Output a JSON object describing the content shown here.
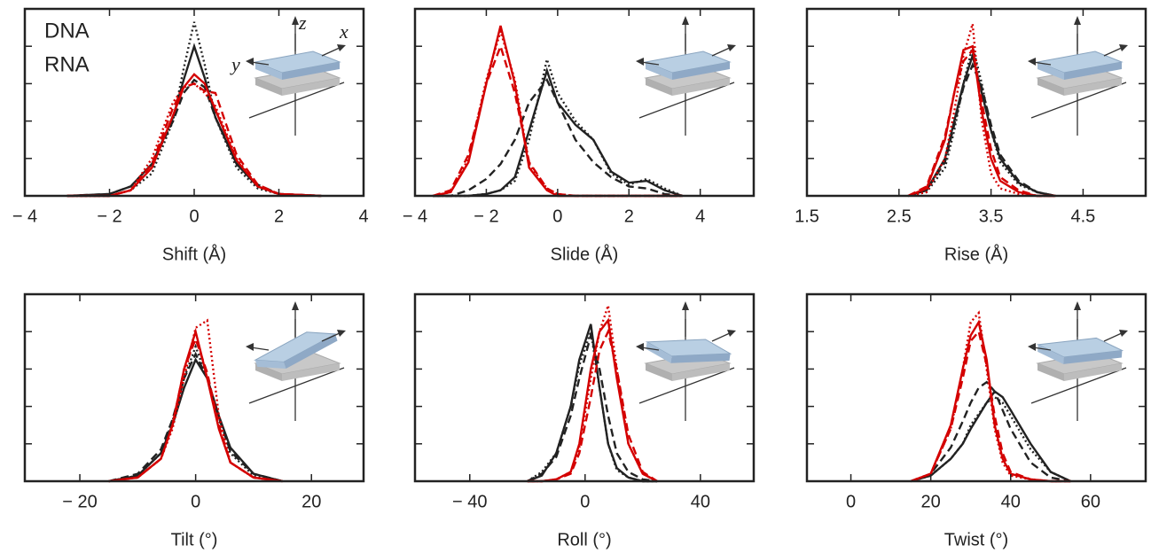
{
  "chart_data": [
    {
      "type": "line",
      "xlabel": "Shift (Å)",
      "xlim": [
        -4,
        4
      ],
      "xticks": [
        {
          "value": -4,
          "label": "− 4"
        },
        {
          "value": -2,
          "label": "− 2"
        },
        0,
        2,
        4
      ],
      "ylim": [
        0,
        1
      ],
      "yticks": [
        0.2,
        0.4,
        0.6,
        0.8
      ],
      "legend": [
        {
          "name": "DNA",
          "color": "#222222"
        },
        {
          "name": "RNA",
          "color": "#d40000"
        }
      ],
      "inset_labels": {
        "z": "z",
        "x": "x",
        "y": "y"
      },
      "x": [
        -3,
        -2,
        -1.5,
        -1,
        -0.5,
        -0.25,
        0,
        0.25,
        0.5,
        1,
        1.5,
        2,
        3
      ],
      "series": [
        {
          "color": "#222222",
          "dash": "solid",
          "values": [
            0,
            0.01,
            0.05,
            0.17,
            0.42,
            0.62,
            0.8,
            0.63,
            0.42,
            0.17,
            0.05,
            0.01,
            0
          ]
        },
        {
          "color": "#222222",
          "dash": "dashed",
          "values": [
            0,
            0.01,
            0.05,
            0.17,
            0.4,
            0.55,
            0.62,
            0.58,
            0.42,
            0.18,
            0.06,
            0.01,
            0
          ]
        },
        {
          "color": "#222222",
          "dash": "dotted",
          "values": [
            0,
            0,
            0.03,
            0.12,
            0.4,
            0.68,
            0.93,
            0.7,
            0.42,
            0.15,
            0.04,
            0.01,
            0
          ]
        },
        {
          "color": "#d40000",
          "dash": "solid",
          "values": [
            0,
            0,
            0.03,
            0.15,
            0.43,
            0.58,
            0.65,
            0.6,
            0.46,
            0.19,
            0.05,
            0.01,
            0
          ]
        },
        {
          "color": "#d40000",
          "dash": "dashed",
          "values": [
            0,
            0,
            0.03,
            0.17,
            0.47,
            0.58,
            0.6,
            0.56,
            0.55,
            0.22,
            0.06,
            0.01,
            0
          ]
        },
        {
          "color": "#d40000",
          "dash": "dotted",
          "values": [
            0,
            0,
            0.03,
            0.2,
            0.5,
            0.58,
            0.6,
            0.55,
            0.48,
            0.2,
            0.05,
            0.01,
            0
          ]
        }
      ]
    },
    {
      "type": "line",
      "xlabel": "Slide (Å)",
      "xlim": [
        -4,
        5.5
      ],
      "xticks": [
        {
          "value": -4,
          "label": "− 4"
        },
        {
          "value": -2,
          "label": "− 2"
        },
        0,
        2,
        4
      ],
      "ylim": [
        0,
        1
      ],
      "yticks": [
        0.2,
        0.4,
        0.6,
        0.8
      ],
      "x": [
        -3.5,
        -3,
        -2.5,
        -2,
        -1.6,
        -1.2,
        -0.8,
        -0.3,
        0,
        0.5,
        1,
        1.5,
        2,
        2.5,
        3,
        3.5
      ],
      "series": [
        {
          "color": "#222222",
          "dash": "solid",
          "values": [
            0,
            0,
            0,
            0.01,
            0.03,
            0.1,
            0.35,
            0.67,
            0.5,
            0.38,
            0.3,
            0.13,
            0.07,
            0.08,
            0.03,
            0
          ]
        },
        {
          "color": "#222222",
          "dash": "dashed",
          "values": [
            0,
            0,
            0.03,
            0.09,
            0.17,
            0.3,
            0.5,
            0.62,
            0.5,
            0.3,
            0.18,
            0.1,
            0.05,
            0.04,
            0.01,
            0
          ]
        },
        {
          "color": "#222222",
          "dash": "dotted",
          "values": [
            0,
            0,
            0,
            0.01,
            0.03,
            0.08,
            0.3,
            0.73,
            0.55,
            0.4,
            0.3,
            0.12,
            0.06,
            0.09,
            0.04,
            0
          ]
        },
        {
          "color": "#d40000",
          "dash": "solid",
          "values": [
            0,
            0.02,
            0.18,
            0.6,
            0.91,
            0.6,
            0.15,
            0.03,
            0,
            0,
            0,
            0,
            0,
            0,
            0,
            0
          ]
        },
        {
          "color": "#d40000",
          "dash": "dashed",
          "values": [
            0,
            0.03,
            0.22,
            0.6,
            0.8,
            0.55,
            0.18,
            0.04,
            0.01,
            0,
            0,
            0,
            0,
            0,
            0,
            0
          ]
        },
        {
          "color": "#d40000",
          "dash": "dotted",
          "values": [
            0,
            0.02,
            0.2,
            0.62,
            0.88,
            0.62,
            0.17,
            0.04,
            0.01,
            0,
            0,
            0,
            0,
            0,
            0,
            0
          ]
        }
      ]
    },
    {
      "type": "line",
      "xlabel": "Rise (Å)",
      "xlim": [
        1.5,
        5.18
      ],
      "xticks": [
        1.5,
        2.5,
        3.5,
        4.5
      ],
      "ylim": [
        0,
        1
      ],
      "yticks": [
        0.2,
        0.4,
        0.6,
        0.8
      ],
      "x": [
        2.6,
        2.8,
        3.0,
        3.1,
        3.2,
        3.3,
        3.4,
        3.5,
        3.6,
        3.8,
        4.0,
        4.2
      ],
      "series": [
        {
          "color": "#222222",
          "dash": "solid",
          "values": [
            0,
            0.03,
            0.2,
            0.4,
            0.6,
            0.75,
            0.55,
            0.35,
            0.2,
            0.07,
            0.02,
            0
          ]
        },
        {
          "color": "#222222",
          "dash": "dashed",
          "values": [
            0,
            0.03,
            0.18,
            0.38,
            0.58,
            0.7,
            0.58,
            0.38,
            0.22,
            0.08,
            0.02,
            0
          ]
        },
        {
          "color": "#222222",
          "dash": "dotted",
          "values": [
            0,
            0.02,
            0.15,
            0.35,
            0.6,
            0.8,
            0.6,
            0.35,
            0.18,
            0.06,
            0.02,
            0
          ]
        },
        {
          "color": "#d40000",
          "dash": "solid",
          "values": [
            0,
            0.04,
            0.3,
            0.55,
            0.78,
            0.8,
            0.45,
            0.2,
            0.08,
            0.02,
            0,
            0
          ]
        },
        {
          "color": "#d40000",
          "dash": "dashed",
          "values": [
            0,
            0.05,
            0.32,
            0.55,
            0.72,
            0.78,
            0.5,
            0.25,
            0.1,
            0.03,
            0,
            0
          ]
        },
        {
          "color": "#d40000",
          "dash": "dotted",
          "values": [
            0,
            0.02,
            0.2,
            0.45,
            0.75,
            0.92,
            0.4,
            0.12,
            0.04,
            0.01,
            0,
            0
          ]
        }
      ]
    },
    {
      "type": "line",
      "xlabel": "Tilt (°)",
      "xlim": [
        -29.5,
        29
      ],
      "xticks": [
        {
          "value": -20,
          "label": "− 20"
        },
        0,
        20
      ],
      "ylim": [
        0,
        1
      ],
      "yticks": [
        0.2,
        0.4,
        0.6,
        0.8
      ],
      "x": [
        -15,
        -10,
        -6,
        -4,
        -2,
        0,
        2,
        4,
        6,
        10,
        15
      ],
      "series": [
        {
          "color": "#222222",
          "dash": "solid",
          "values": [
            0,
            0.03,
            0.15,
            0.3,
            0.5,
            0.65,
            0.55,
            0.35,
            0.18,
            0.04,
            0
          ]
        },
        {
          "color": "#222222",
          "dash": "dashed",
          "values": [
            0,
            0.04,
            0.17,
            0.33,
            0.55,
            0.68,
            0.55,
            0.34,
            0.16,
            0.04,
            0
          ]
        },
        {
          "color": "#222222",
          "dash": "dotted",
          "values": [
            0,
            0.03,
            0.15,
            0.32,
            0.55,
            0.72,
            0.55,
            0.33,
            0.15,
            0.03,
            0
          ]
        },
        {
          "color": "#d40000",
          "dash": "solid",
          "values": [
            0,
            0.02,
            0.12,
            0.3,
            0.6,
            0.8,
            0.55,
            0.28,
            0.1,
            0.02,
            0
          ]
        },
        {
          "color": "#d40000",
          "dash": "dashed",
          "values": [
            0,
            0.02,
            0.12,
            0.3,
            0.6,
            0.76,
            0.58,
            0.3,
            0.1,
            0.02,
            0
          ]
        },
        {
          "color": "#d40000",
          "dash": "dotted",
          "values": [
            0,
            0.02,
            0.12,
            0.28,
            0.55,
            0.82,
            0.86,
            0.35,
            0.1,
            0.02,
            0
          ]
        }
      ]
    },
    {
      "type": "line",
      "xlabel": "Roll (°)",
      "xlim": [
        -59,
        58.5
      ],
      "xticks": [
        {
          "value": -40,
          "label": "− 40"
        },
        0,
        40
      ],
      "ylim": [
        0,
        1
      ],
      "yticks": [
        0.2,
        0.4,
        0.6,
        0.8
      ],
      "x": [
        -20,
        -15,
        -10,
        -5,
        -2,
        2,
        5,
        8,
        11,
        15,
        20,
        25
      ],
      "series": [
        {
          "color": "#222222",
          "dash": "solid",
          "values": [
            0,
            0.03,
            0.15,
            0.4,
            0.65,
            0.84,
            0.5,
            0.2,
            0.07,
            0.02,
            0,
            0
          ]
        },
        {
          "color": "#222222",
          "dash": "dashed",
          "values": [
            0,
            0.04,
            0.13,
            0.35,
            0.55,
            0.78,
            0.6,
            0.35,
            0.15,
            0.05,
            0.01,
            0
          ]
        },
        {
          "color": "#222222",
          "dash": "dotted",
          "values": [
            0,
            0.05,
            0.15,
            0.4,
            0.62,
            0.8,
            0.5,
            0.2,
            0.06,
            0.02,
            0,
            0
          ]
        },
        {
          "color": "#d40000",
          "dash": "solid",
          "values": [
            0,
            0,
            0.01,
            0.05,
            0.2,
            0.6,
            0.8,
            0.86,
            0.55,
            0.2,
            0.04,
            0
          ]
        },
        {
          "color": "#d40000",
          "dash": "dashed",
          "values": [
            0,
            0,
            0.01,
            0.04,
            0.15,
            0.45,
            0.7,
            0.8,
            0.6,
            0.25,
            0.05,
            0
          ]
        },
        {
          "color": "#d40000",
          "dash": "dotted",
          "values": [
            0,
            0,
            0.01,
            0.05,
            0.18,
            0.55,
            0.8,
            0.94,
            0.6,
            0.2,
            0.04,
            0
          ]
        }
      ]
    },
    {
      "type": "line",
      "xlabel": "Twist (°)",
      "xlim": [
        -11,
        73.8
      ],
      "xticks": [
        0,
        20,
        40,
        60
      ],
      "ylim": [
        0,
        1
      ],
      "yticks": [
        0.2,
        0.4,
        0.6,
        0.8
      ],
      "x": [
        15,
        20,
        25,
        28,
        30,
        32,
        34,
        36,
        38,
        40,
        45,
        50,
        55
      ],
      "series": [
        {
          "color": "#222222",
          "dash": "solid",
          "values": [
            0,
            0.03,
            0.12,
            0.2,
            0.28,
            0.35,
            0.42,
            0.48,
            0.45,
            0.38,
            0.2,
            0.05,
            0
          ]
        },
        {
          "color": "#222222",
          "dash": "dashed",
          "values": [
            0,
            0.04,
            0.18,
            0.32,
            0.42,
            0.5,
            0.53,
            0.48,
            0.38,
            0.28,
            0.1,
            0.02,
            0
          ]
        },
        {
          "color": "#222222",
          "dash": "dotted",
          "values": [
            0,
            0.03,
            0.12,
            0.2,
            0.3,
            0.36,
            0.42,
            0.45,
            0.42,
            0.35,
            0.17,
            0.05,
            0
          ]
        },
        {
          "color": "#d40000",
          "dash": "solid",
          "values": [
            0,
            0.04,
            0.3,
            0.6,
            0.78,
            0.85,
            0.65,
            0.3,
            0.12,
            0.04,
            0.01,
            0,
            0
          ]
        },
        {
          "color": "#d40000",
          "dash": "dashed",
          "values": [
            0,
            0.04,
            0.28,
            0.55,
            0.75,
            0.8,
            0.62,
            0.35,
            0.15,
            0.05,
            0.01,
            0,
            0
          ]
        },
        {
          "color": "#d40000",
          "dash": "dotted",
          "values": [
            0,
            0.04,
            0.28,
            0.6,
            0.85,
            0.9,
            0.6,
            0.28,
            0.1,
            0.03,
            0.01,
            0,
            0
          ]
        }
      ]
    }
  ]
}
